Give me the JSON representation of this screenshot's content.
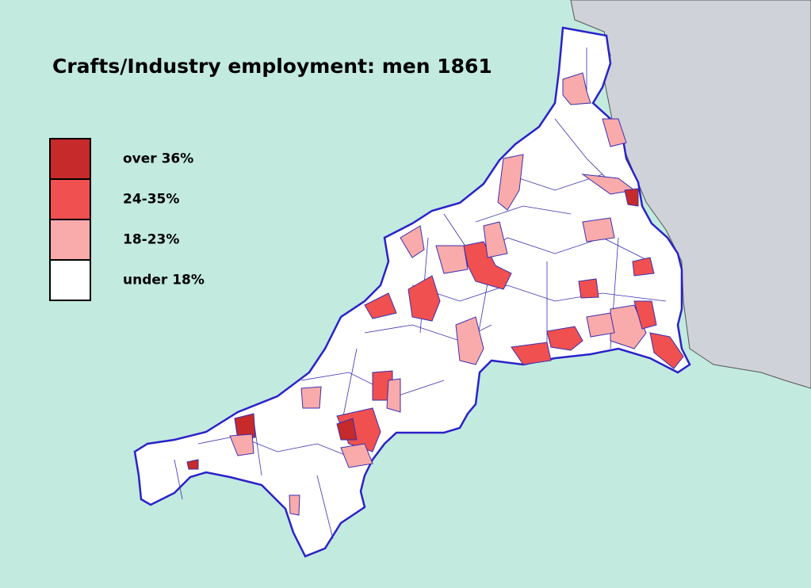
{
  "title": "Crafts/Industry employment: men 1861",
  "legend": [
    {
      "label": "over 36%",
      "color": "#c62a2a"
    },
    {
      "label": "24-35%",
      "color": "#f05050"
    },
    {
      "label": "18-23%",
      "color": "#f9aaaa"
    },
    {
      "label": "under 18%",
      "color": "#ffffff"
    }
  ]
}
